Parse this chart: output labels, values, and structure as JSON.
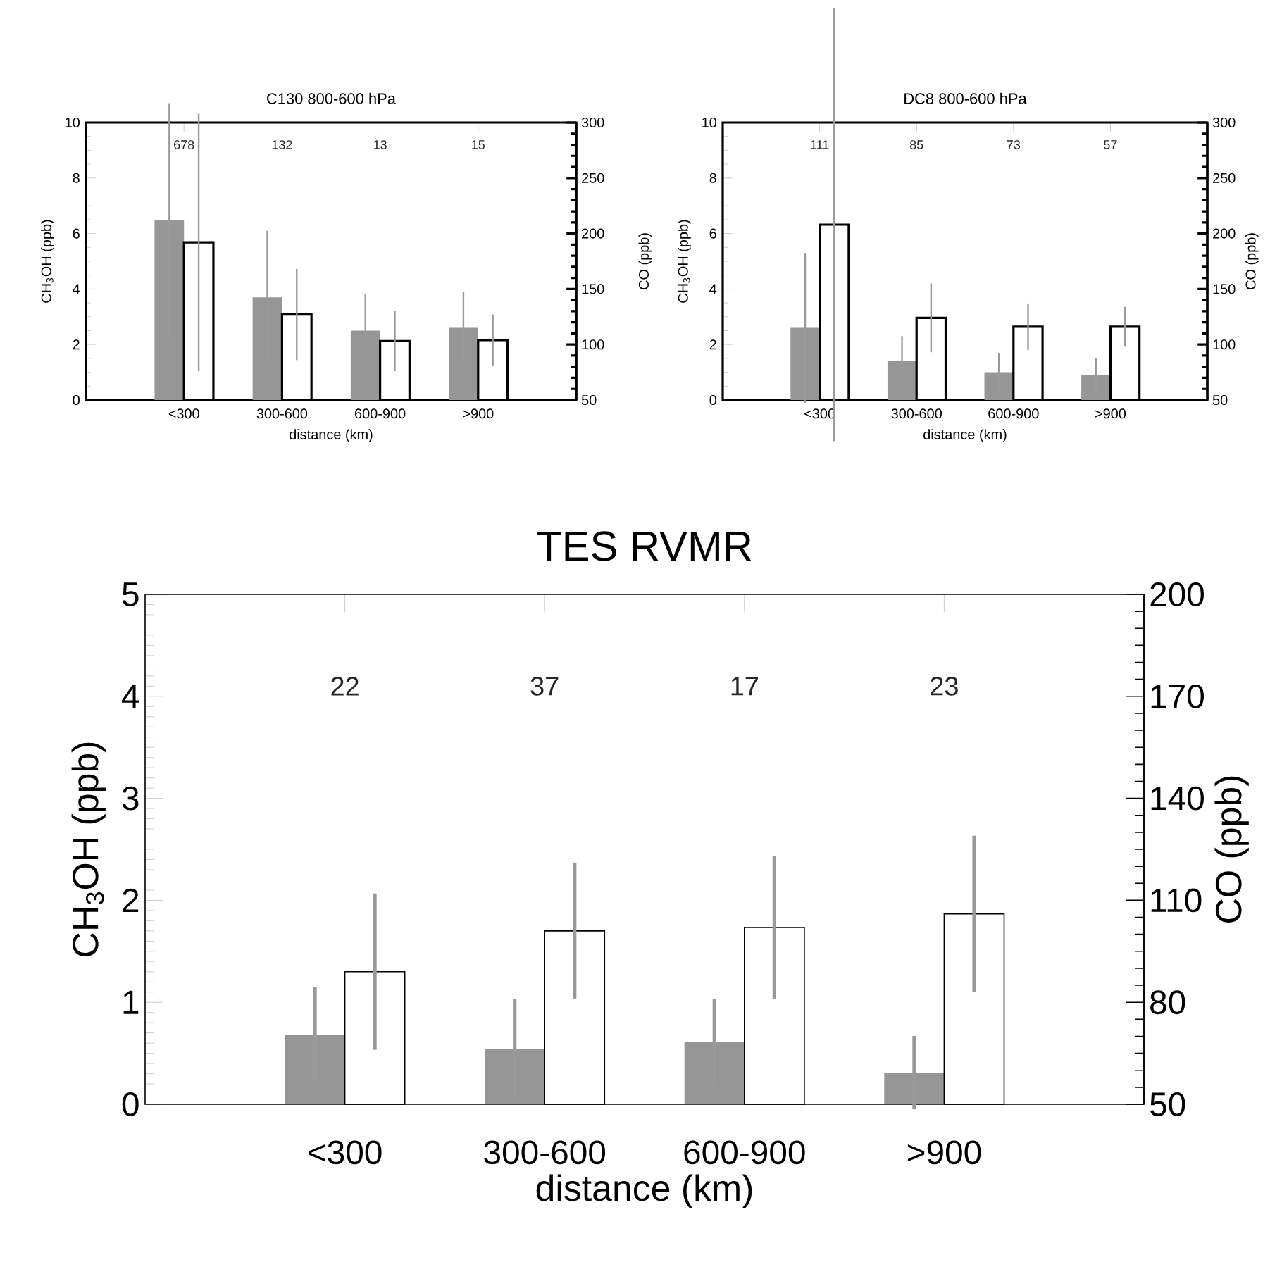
{
  "chart_data": [
    {
      "type": "bar",
      "title": "C130 800-600 hPa",
      "xlabel": "distance (km)",
      "ylabel": "CH$_{3}$OH (ppb)",
      "categories": [
        "<300",
        "300-600",
        "600-900",
        ">900"
      ],
      "ylim": [
        0,
        10
      ],
      "yticks": [
        0,
        2,
        4,
        6,
        8,
        10
      ],
      "y2lim": [
        50,
        300
      ],
      "y2ticks": [
        50,
        100,
        150,
        200,
        250,
        300
      ],
      "series": [
        {
          "color": "#969696",
          "values": [
            6.5,
            3.7,
            2.5,
            2.6
          ],
          "errors": [
            4.2,
            2.4,
            1.3,
            1.3
          ]
        },
        {
          "color": "#ffffff",
          "axis": "y2",
          "values": [
            192,
            127,
            103,
            104
          ],
          "errors": [
            116,
            41,
            27,
            23
          ]
        }
      ],
      "annotations": [
        "678",
        "132",
        "13",
        "15"
      ]
    },
    {
      "type": "bar",
      "title": "DC8 800-600 hPa",
      "xlabel": "distance (km)",
      "ylabel": "CH$_{3}$OH (ppb)",
      "y2label": "CO (ppb)",
      "categories": [
        "<300",
        "300-600",
        "600-900",
        ">900"
      ],
      "ylim": [
        0,
        10
      ],
      "yticks": [
        0,
        2,
        4,
        6,
        8,
        10
      ],
      "y2lim": [
        50,
        300
      ],
      "y2ticks": [
        50,
        100,
        150,
        200,
        250,
        300
      ],
      "series": [
        {
          "color": "#969696",
          "values": [
            2.6,
            1.4,
            1.0,
            0.9
          ],
          "errors": [
            2.7,
            0.9,
            0.7,
            0.6
          ]
        },
        {
          "color": "#ffffff",
          "axis": "y2",
          "values": [
            208,
            124,
            116,
            116
          ],
          "errors": [
            195,
            31,
            21,
            18
          ]
        }
      ],
      "annotations": [
        "111",
        "85",
        "73",
        "57",
        "CO (ppb)"
      ]
    },
    {
      "type": "bar",
      "title": "TES RVMR",
      "xlabel": "distance (km)",
      "ylabel": "CH$_{3}$OH (ppb)",
      "y2label": "CO (ppb)",
      "categories": [
        "<300",
        "300-600",
        "600-900",
        ">900"
      ],
      "ylim": [
        0,
        5
      ],
      "yticks": [
        0,
        1,
        2,
        3,
        4,
        5
      ],
      "y2lim": [
        50,
        200
      ],
      "y2ticks": [
        50,
        80,
        110,
        140,
        170,
        200
      ],
      "series": [
        {
          "color": "#969696",
          "values": [
            0.68,
            0.54,
            0.61,
            0.31
          ],
          "errors": [
            0.47,
            0.49,
            0.42,
            0.36
          ]
        },
        {
          "color": "#ffffff",
          "axis": "y2",
          "values": [
            89,
            101,
            102,
            106
          ],
          "errors": [
            23,
            20,
            21,
            23
          ]
        }
      ],
      "annotations": [
        "22",
        "37",
        "17",
        "23"
      ]
    }
  ]
}
